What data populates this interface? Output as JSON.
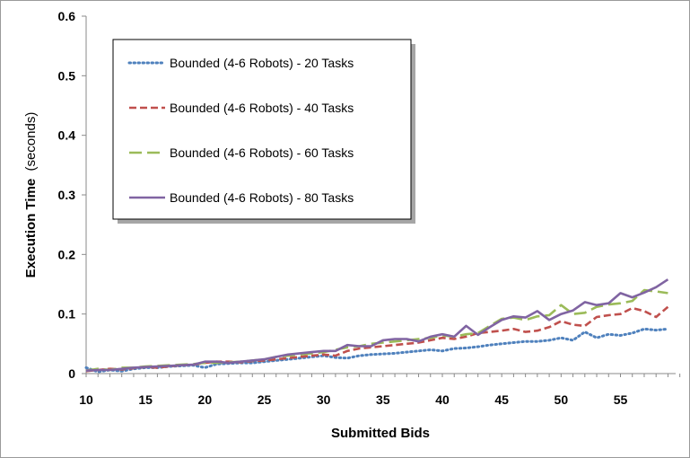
{
  "chart_data": {
    "type": "line",
    "xlabel": "Submitted Bids",
    "ylabel_bold": "Execution Time",
    "ylabel_unit": "(seconds)",
    "xlim": [
      10,
      59
    ],
    "ylim": [
      0,
      0.6
    ],
    "x_ticks": [
      "10",
      "15",
      "20",
      "25",
      "30",
      "35",
      "40",
      "45",
      "50",
      "55"
    ],
    "y_ticks": [
      "0",
      "0.1",
      "0.2",
      "0.3",
      "0.4",
      "0.5",
      "0.6"
    ],
    "grid": false,
    "legend_position": "top-left (inside plot)",
    "x": [
      10,
      11,
      12,
      13,
      14,
      15,
      16,
      17,
      18,
      19,
      20,
      21,
      22,
      23,
      24,
      25,
      26,
      27,
      28,
      29,
      30,
      31,
      32,
      33,
      34,
      35,
      36,
      37,
      38,
      39,
      40,
      41,
      42,
      43,
      44,
      45,
      46,
      47,
      48,
      49,
      50,
      51,
      52,
      53,
      54,
      55,
      56,
      57,
      58,
      59
    ],
    "series": [
      {
        "name": "Bounded (4-6 Robots) - 20 Tasks",
        "color": "#4f81bd",
        "dash": "dotted",
        "values": [
          0.01,
          0.003,
          0.006,
          0.004,
          0.008,
          0.01,
          0.01,
          0.012,
          0.013,
          0.014,
          0.01,
          0.016,
          0.017,
          0.018,
          0.018,
          0.02,
          0.022,
          0.024,
          0.026,
          0.028,
          0.03,
          0.027,
          0.026,
          0.03,
          0.032,
          0.033,
          0.034,
          0.036,
          0.038,
          0.04,
          0.038,
          0.042,
          0.043,
          0.045,
          0.048,
          0.05,
          0.052,
          0.054,
          0.054,
          0.056,
          0.06,
          0.056,
          0.07,
          0.06,
          0.066,
          0.064,
          0.068,
          0.075,
          0.073,
          0.075
        ]
      },
      {
        "name": "Bounded (4-6 Robots) - 40 Tasks",
        "color": "#c0504d",
        "dash": "dashed",
        "values": [
          0.004,
          0.006,
          0.008,
          0.007,
          0.009,
          0.011,
          0.01,
          0.012,
          0.014,
          0.015,
          0.018,
          0.02,
          0.02,
          0.019,
          0.021,
          0.022,
          0.024,
          0.026,
          0.028,
          0.03,
          0.032,
          0.03,
          0.038,
          0.042,
          0.044,
          0.046,
          0.048,
          0.05,
          0.052,
          0.056,
          0.06,
          0.058,
          0.062,
          0.068,
          0.07,
          0.072,
          0.075,
          0.07,
          0.072,
          0.078,
          0.088,
          0.082,
          0.08,
          0.095,
          0.098,
          0.1,
          0.11,
          0.105,
          0.095,
          0.112
        ]
      },
      {
        "name": "Bounded (4-6 Robots) - 60 Tasks",
        "color": "#9bbb59",
        "dash": "long-dashed",
        "values": [
          0.005,
          0.008,
          0.006,
          0.01,
          0.01,
          0.012,
          0.013,
          0.014,
          0.015,
          0.016,
          0.018,
          0.018,
          0.019,
          0.02,
          0.022,
          0.024,
          0.028,
          0.03,
          0.032,
          0.034,
          0.036,
          0.04,
          0.044,
          0.046,
          0.05,
          0.052,
          0.054,
          0.056,
          0.058,
          0.06,
          0.064,
          0.062,
          0.066,
          0.068,
          0.08,
          0.092,
          0.094,
          0.09,
          0.096,
          0.098,
          0.115,
          0.1,
          0.102,
          0.112,
          0.116,
          0.118,
          0.122,
          0.14,
          0.138,
          0.135
        ]
      },
      {
        "name": "Bounded (4-6 Robots) - 80 Tasks",
        "color": "#8064a2",
        "dash": "solid",
        "values": [
          0.005,
          0.006,
          0.006,
          0.008,
          0.01,
          0.011,
          0.012,
          0.013,
          0.014,
          0.015,
          0.02,
          0.02,
          0.018,
          0.02,
          0.022,
          0.024,
          0.028,
          0.032,
          0.034,
          0.036,
          0.038,
          0.038,
          0.048,
          0.046,
          0.046,
          0.056,
          0.058,
          0.058,
          0.054,
          0.062,
          0.066,
          0.062,
          0.08,
          0.065,
          0.078,
          0.09,
          0.096,
          0.094,
          0.105,
          0.09,
          0.1,
          0.106,
          0.12,
          0.115,
          0.118,
          0.135,
          0.128,
          0.136,
          0.145,
          0.158
        ]
      }
    ]
  }
}
